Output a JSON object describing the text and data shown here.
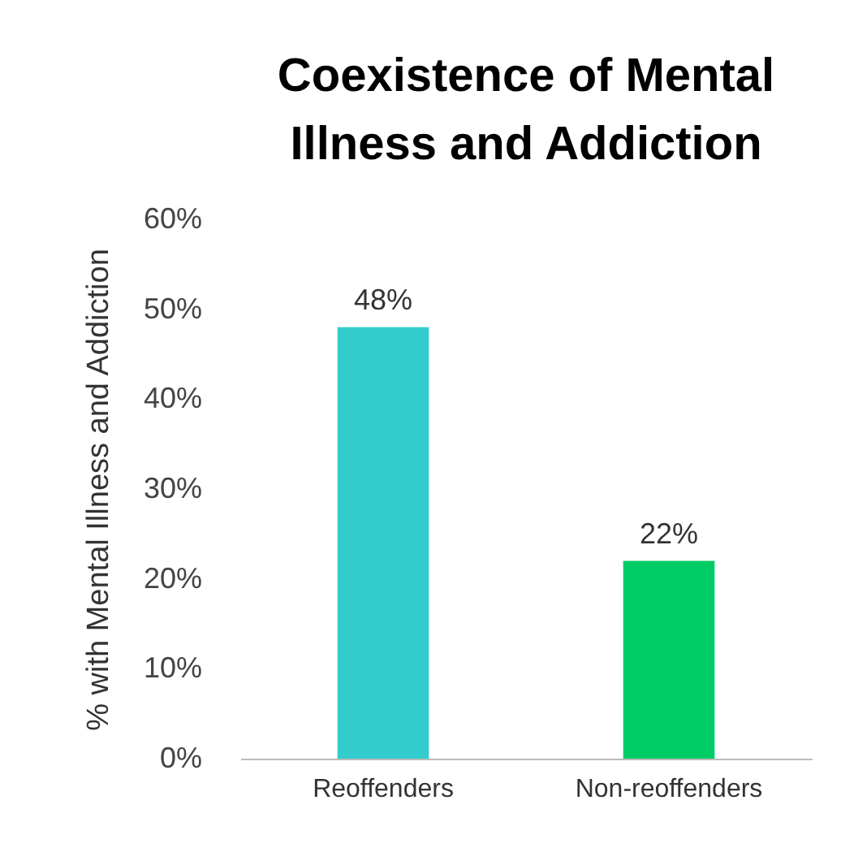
{
  "chart_data": {
    "type": "bar",
    "title": "Coexistence of Mental Illness and Addiction",
    "ylabel": "% with Mental Illness and Addiction",
    "categories": [
      "Reoffenders",
      "Non-reoffenders"
    ],
    "values": [
      48,
      22
    ],
    "colors": [
      "#33cccc",
      "#00cc66"
    ],
    "value_labels": [
      "48%",
      "22%"
    ],
    "ylim": [
      0,
      60
    ],
    "yticks": [
      {
        "value": 0,
        "label": "0%"
      },
      {
        "value": 10,
        "label": "10%"
      },
      {
        "value": 20,
        "label": "20%"
      },
      {
        "value": 30,
        "label": "30%"
      },
      {
        "value": 40,
        "label": "40%"
      },
      {
        "value": 50,
        "label": "50%"
      },
      {
        "value": 60,
        "label": "60%"
      }
    ],
    "grid": false,
    "legend": false
  }
}
